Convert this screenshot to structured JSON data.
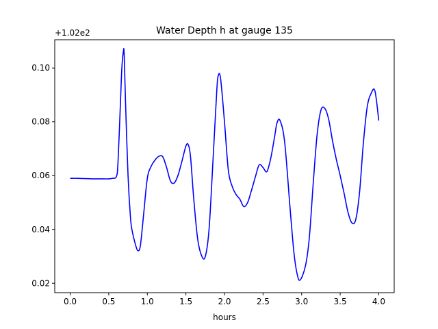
{
  "chart_data": {
    "type": "line",
    "title": "Water Depth h at gauge 135",
    "xlabel": "hours",
    "ylabel": "",
    "y_offset_label": "+1.02e2",
    "xlim": [
      -0.2,
      4.2
    ],
    "ylim": [
      0.0165,
      0.1105
    ],
    "x_ticks": [
      0.0,
      0.5,
      1.0,
      1.5,
      2.0,
      2.5,
      3.0,
      3.5,
      4.0
    ],
    "x_tick_labels": [
      "0.0",
      "0.5",
      "1.0",
      "1.5",
      "2.0",
      "2.5",
      "3.0",
      "3.5",
      "4.0"
    ],
    "y_ticks": [
      0.02,
      0.04,
      0.06,
      0.08,
      0.1
    ],
    "y_tick_labels": [
      "0.02",
      "0.04",
      "0.06",
      "0.08",
      "0.10"
    ],
    "grid": false,
    "series": [
      {
        "color": "#0000ff",
        "x": [
          0.0,
          0.1,
          0.2,
          0.3,
          0.4,
          0.5,
          0.55,
          0.6,
          0.62,
          0.65,
          0.67,
          0.69,
          0.7,
          0.72,
          0.75,
          0.78,
          0.8,
          0.85,
          0.88,
          0.91,
          0.95,
          1.0,
          1.05,
          1.1,
          1.15,
          1.2,
          1.25,
          1.3,
          1.35,
          1.4,
          1.45,
          1.5,
          1.53,
          1.56,
          1.6,
          1.65,
          1.7,
          1.75,
          1.8,
          1.85,
          1.9,
          1.92,
          1.95,
          2.0,
          2.05,
          2.1,
          2.15,
          2.2,
          2.25,
          2.3,
          2.35,
          2.4,
          2.45,
          2.5,
          2.55,
          2.6,
          2.65,
          2.68,
          2.72,
          2.78,
          2.85,
          2.9,
          2.94,
          2.98,
          3.05,
          3.1,
          3.15,
          3.2,
          3.25,
          3.3,
          3.35,
          3.4,
          3.45,
          3.5,
          3.55,
          3.6,
          3.65,
          3.7,
          3.75,
          3.8,
          3.85,
          3.9,
          3.95,
          4.0
        ],
        "y": [
          0.059,
          0.059,
          0.0589,
          0.0588,
          0.0588,
          0.0588,
          0.059,
          0.0597,
          0.065,
          0.086,
          0.1,
          0.1062,
          0.105,
          0.085,
          0.06,
          0.045,
          0.04,
          0.034,
          0.0321,
          0.034,
          0.045,
          0.059,
          0.0635,
          0.0658,
          0.0672,
          0.067,
          0.063,
          0.058,
          0.0573,
          0.0603,
          0.0655,
          0.071,
          0.0715,
          0.067,
          0.052,
          0.037,
          0.0305,
          0.0298,
          0.04,
          0.065,
          0.0915,
          0.0972,
          0.096,
          0.08,
          0.062,
          0.056,
          0.053,
          0.0512,
          0.0485,
          0.05,
          0.0545,
          0.0595,
          0.064,
          0.063,
          0.0615,
          0.0665,
          0.0745,
          0.0795,
          0.0805,
          0.0725,
          0.048,
          0.0315,
          0.0237,
          0.0212,
          0.0265,
          0.037,
          0.057,
          0.075,
          0.0843,
          0.085,
          0.081,
          0.073,
          0.066,
          0.06,
          0.0535,
          0.0465,
          0.0425,
          0.0435,
          0.0535,
          0.072,
          0.0855,
          0.0905,
          0.0915,
          0.0805
        ]
      }
    ]
  }
}
